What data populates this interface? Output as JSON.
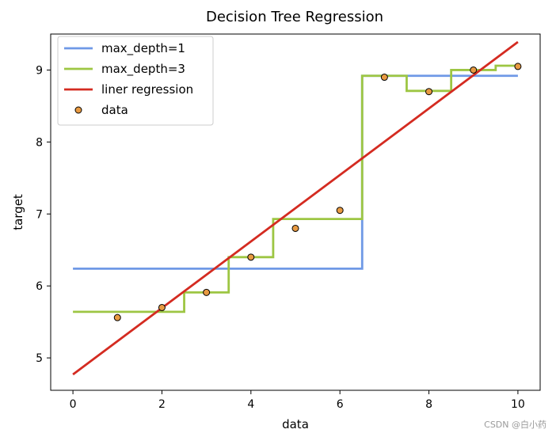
{
  "chart_data": {
    "type": "line",
    "title": "Decision Tree Regression",
    "xlabel": "data",
    "ylabel": "target",
    "xlim": [
      -0.5,
      10.5
    ],
    "ylim": [
      4.55,
      9.5
    ],
    "xticks": [
      0,
      2,
      4,
      6,
      8,
      10
    ],
    "yticks": [
      5,
      6,
      7,
      8,
      9
    ],
    "grid": false,
    "legend_position": "upper-left",
    "series": [
      {
        "name": "max_depth=1",
        "kind": "step",
        "color": "#6f99e6",
        "x": [
          0,
          6.5,
          6.5,
          10
        ],
        "y": [
          6.24,
          6.24,
          8.92,
          8.92
        ]
      },
      {
        "name": "max_depth=3",
        "kind": "step",
        "color": "#9dc643",
        "x": [
          0,
          2.5,
          2.5,
          3.5,
          3.5,
          4.5,
          4.5,
          6.5,
          6.5,
          7.5,
          7.5,
          8.5,
          8.5,
          9.5,
          9.5,
          10
        ],
        "y": [
          5.64,
          5.64,
          5.91,
          5.91,
          6.4,
          6.4,
          6.93,
          6.93,
          8.92,
          8.92,
          8.71,
          8.71,
          9.0,
          9.0,
          9.06,
          9.06
        ]
      },
      {
        "name": "liner regression",
        "kind": "line",
        "color": "#d42b21",
        "x": [
          0,
          10
        ],
        "y": [
          4.77,
          9.39
        ]
      },
      {
        "name": "data",
        "kind": "scatter",
        "color": "#e89a42",
        "edge_color": "#000000",
        "x": [
          1,
          2,
          3,
          4,
          5,
          6,
          7,
          8,
          9,
          10
        ],
        "y": [
          5.56,
          5.7,
          5.91,
          6.4,
          6.8,
          7.05,
          8.9,
          8.7,
          9.0,
          9.05
        ]
      }
    ]
  },
  "watermark": "CSDN @白小药"
}
